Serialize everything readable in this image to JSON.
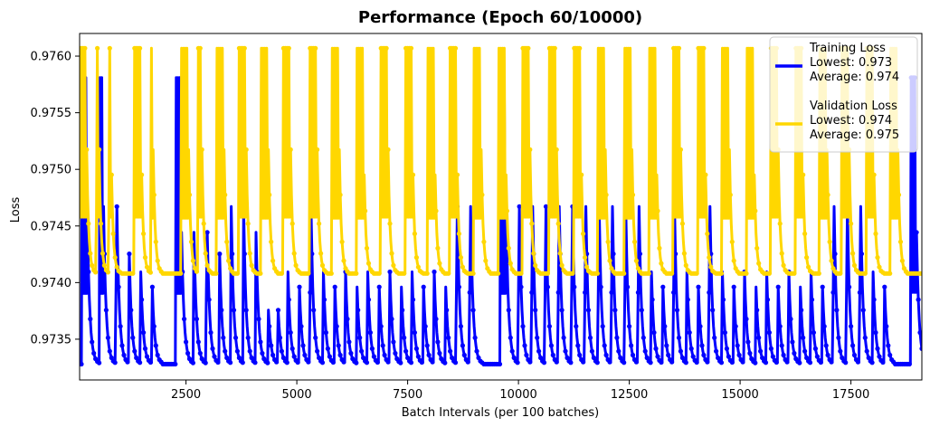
{
  "chart_data": {
    "type": "line",
    "title": "Performance (Epoch 60/10000)",
    "xlabel": "Batch Intervals (per 100 batches)",
    "ylabel": "Loss",
    "xlim": [
      100,
      19100
    ],
    "ylim": [
      0.97314,
      0.9762
    ],
    "xticks": [
      2500,
      5000,
      7500,
      10000,
      12500,
      15000,
      17500
    ],
    "xtick_labels": [
      "2500",
      "5000",
      "7500",
      "10000",
      "12500",
      "15000",
      "17500"
    ],
    "yticks": [
      0.9735,
      0.974,
      0.9745,
      0.975,
      0.9755,
      0.976
    ],
    "ytick_labels": [
      "0.9735",
      "0.9740",
      "0.9745",
      "0.9750",
      "0.9755",
      "0.9760"
    ],
    "grid": false,
    "legend_position": "top-right",
    "series": [
      {
        "name": "Training Loss",
        "color": "#0000ff",
        "legend_lines": [
          "Training Loss",
          "Lowest: 0.973",
          "Average: 0.974"
        ],
        "low": 0.97328,
        "high": 0.97581,
        "cycle_starts": [
          150,
          520,
          820,
          1080,
          1330,
          1580,
          2270,
          2550,
          2850,
          3120,
          3400,
          3680,
          3950,
          4180,
          4400,
          4650,
          4900,
          5200,
          5450,
          5700,
          5950,
          6200,
          6450,
          6700,
          6950,
          7200,
          7450,
          7700,
          7950,
          8200,
          8500,
          8800,
          9600,
          9900,
          10200,
          10500,
          10800,
          11100,
          11400,
          11700,
          12000,
          12300,
          12600,
          12850,
          13100,
          13400,
          13650,
          13900,
          14200,
          14450,
          14700,
          14950,
          15200,
          15450,
          15700,
          15950,
          16200,
          16450,
          16700,
          17000,
          17300,
          17600,
          17850,
          18100,
          18850
        ],
        "burst_len": 120,
        "decay_len": 280
      },
      {
        "name": "Validation Loss",
        "color": "#ffd700",
        "legend_lines": [
          "Validation Loss",
          "Lowest: 0.974",
          "Average: 0.975"
        ],
        "low": 0.97408,
        "high": 0.97607,
        "cycle_starts": [
          100,
          380,
          650,
          1330,
          1600,
          2400,
          2700,
          3200,
          3700,
          4200,
          4700,
          5300,
          5800,
          6350,
          6900,
          7450,
          7950,
          8450,
          9000,
          9550,
          10100,
          10700,
          11250,
          11800,
          12400,
          12950,
          13500,
          14050,
          14600,
          15150,
          15700,
          16250,
          16800,
          17300,
          17850,
          18400
        ],
        "burst_len": 160,
        "decay_len": 220
      }
    ]
  }
}
